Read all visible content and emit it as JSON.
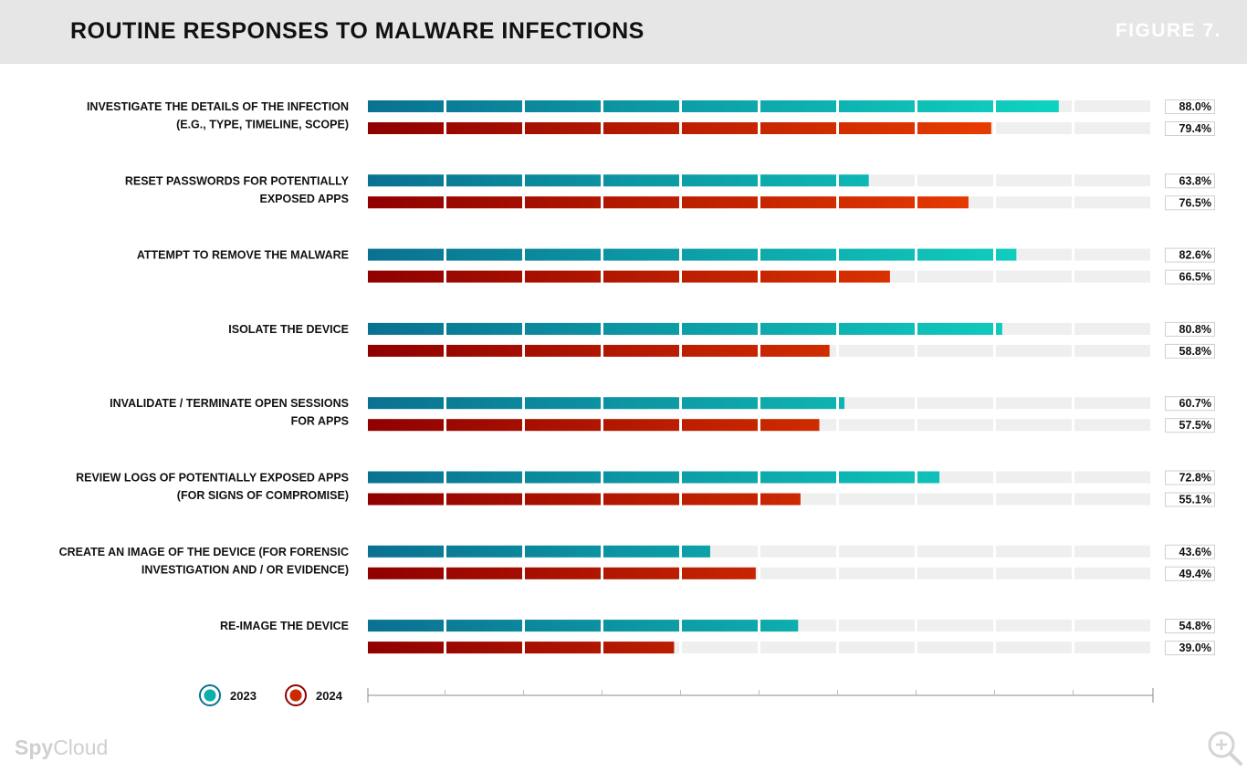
{
  "header": {
    "title": "ROUTINE RESPONSES TO MALWARE INFECTIONS",
    "figure_label": "FIGURE 7."
  },
  "brand": {
    "part1": "Spy",
    "part2": "Cloud"
  },
  "icons": {
    "zoom": "zoom-in-icon"
  },
  "colors": {
    "series_2023": [
      "#0a7191",
      "#11e0c7"
    ],
    "series_2024": [
      "#8f0000",
      "#ff4b00"
    ],
    "track": "#efefef"
  },
  "chart_data": {
    "type": "bar",
    "orientation": "horizontal",
    "categories": [
      [
        "INVESTIGATE THE DETAILS OF THE INFECTION",
        "(E.G., TYPE, TIMELINE, SCOPE)"
      ],
      [
        "RESET PASSWORDS FOR POTENTIALLY",
        "EXPOSED APPS"
      ],
      [
        "ATTEMPT TO REMOVE THE MALWARE"
      ],
      [
        "ISOLATE THE DEVICE"
      ],
      [
        "INVALIDATE / TERMINATE OPEN SESSIONS",
        "FOR APPS"
      ],
      [
        "REVIEW LOGS OF POTENTIALLY EXPOSED APPS",
        "(FOR SIGNS OF COMPROMISE)"
      ],
      [
        "CREATE AN IMAGE OF THE DEVICE (FOR FORENSIC",
        "INVESTIGATION AND / OR EVIDENCE)"
      ],
      [
        "RE-IMAGE THE DEVICE"
      ]
    ],
    "series": [
      {
        "name": "2023",
        "values": [
          88.0,
          63.8,
          82.6,
          80.8,
          60.7,
          72.8,
          43.6,
          54.8
        ]
      },
      {
        "name": "2024",
        "values": [
          79.4,
          76.5,
          66.5,
          58.8,
          57.5,
          55.1,
          49.4,
          39.0
        ]
      }
    ],
    "value_format": "%",
    "xlim": [
      0,
      100
    ],
    "grid": false,
    "legend_position": "bottom-left"
  }
}
